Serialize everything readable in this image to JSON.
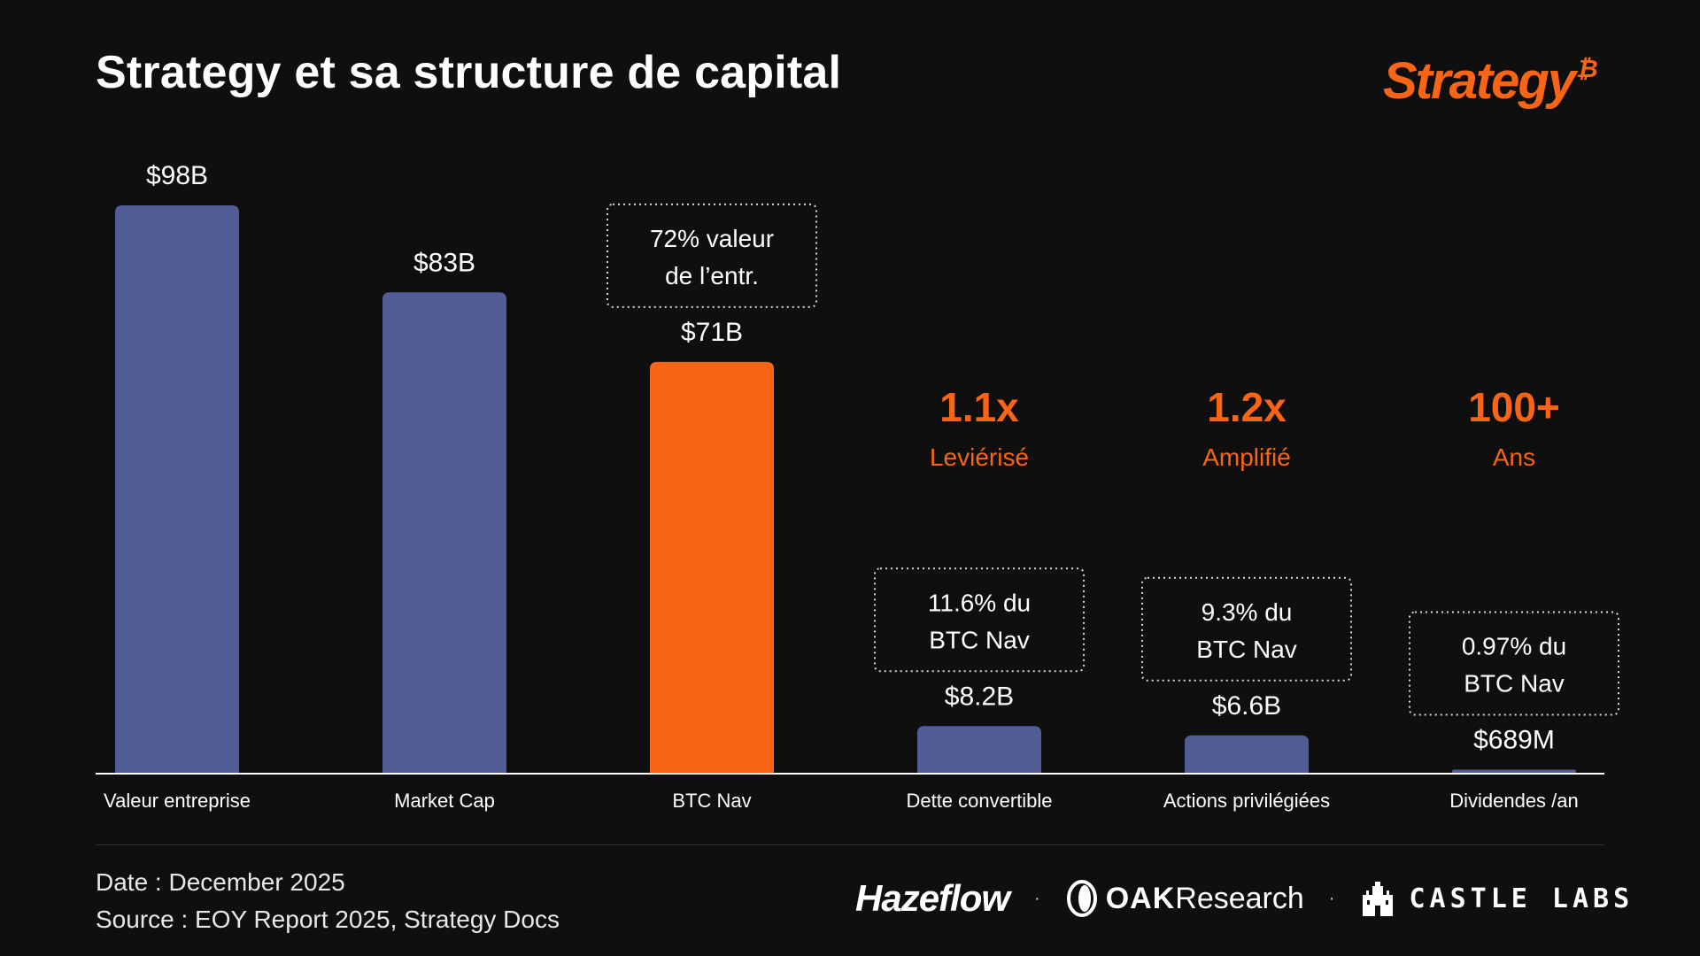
{
  "header": {
    "title": "Strategy et sa structure de capital",
    "logo_text": "Strategy",
    "logo_mark": "₿"
  },
  "colors": {
    "background": "#0f0f10",
    "bar_default": "#525d97",
    "bar_highlight": "#f96515",
    "accent": "#f96515",
    "text": "#ffffff",
    "axis": "#ffffff"
  },
  "chart_data": {
    "type": "bar",
    "unit": "$B",
    "ylim": [
      0,
      98
    ],
    "categories": [
      "Valeur entreprise",
      "Market Cap",
      "BTC Nav",
      "Dette convertible",
      "Actions privilégiées",
      "Dividendes /an"
    ],
    "values": [
      98,
      83,
      71,
      8.2,
      6.6,
      0.689
    ],
    "value_labels": [
      "$98B",
      "$83B",
      "$71B",
      "$8.2B",
      "$6.6B",
      "$689M"
    ],
    "highlight_index": 2,
    "annotations": [
      {
        "category_index": 2,
        "line1": "72% valeur",
        "line2": "de l’entr."
      },
      {
        "category_index": 3,
        "line1": "11.6% du",
        "line2": "BTC Nav"
      },
      {
        "category_index": 4,
        "line1": "9.3% du",
        "line2": "BTC Nav"
      },
      {
        "category_index": 5,
        "line1": "0.97% du",
        "line2": "BTC Nav"
      }
    ],
    "highlights": [
      {
        "category_index": 3,
        "value": "1.1x",
        "label": "Leviérisé"
      },
      {
        "category_index": 4,
        "value": "1.2x",
        "label": "Amplifié"
      },
      {
        "category_index": 5,
        "value": "100+",
        "label": "Ans"
      }
    ]
  },
  "footer": {
    "date": "Date : December 2025",
    "source": "Source : EOY Report 2025, Strategy Docs"
  },
  "partners": {
    "hazeflow": "Hazeflow",
    "oak_strong": "OAK",
    "oak_rest": "Research",
    "castle": "CASTLE LABS",
    "separator": "·"
  }
}
